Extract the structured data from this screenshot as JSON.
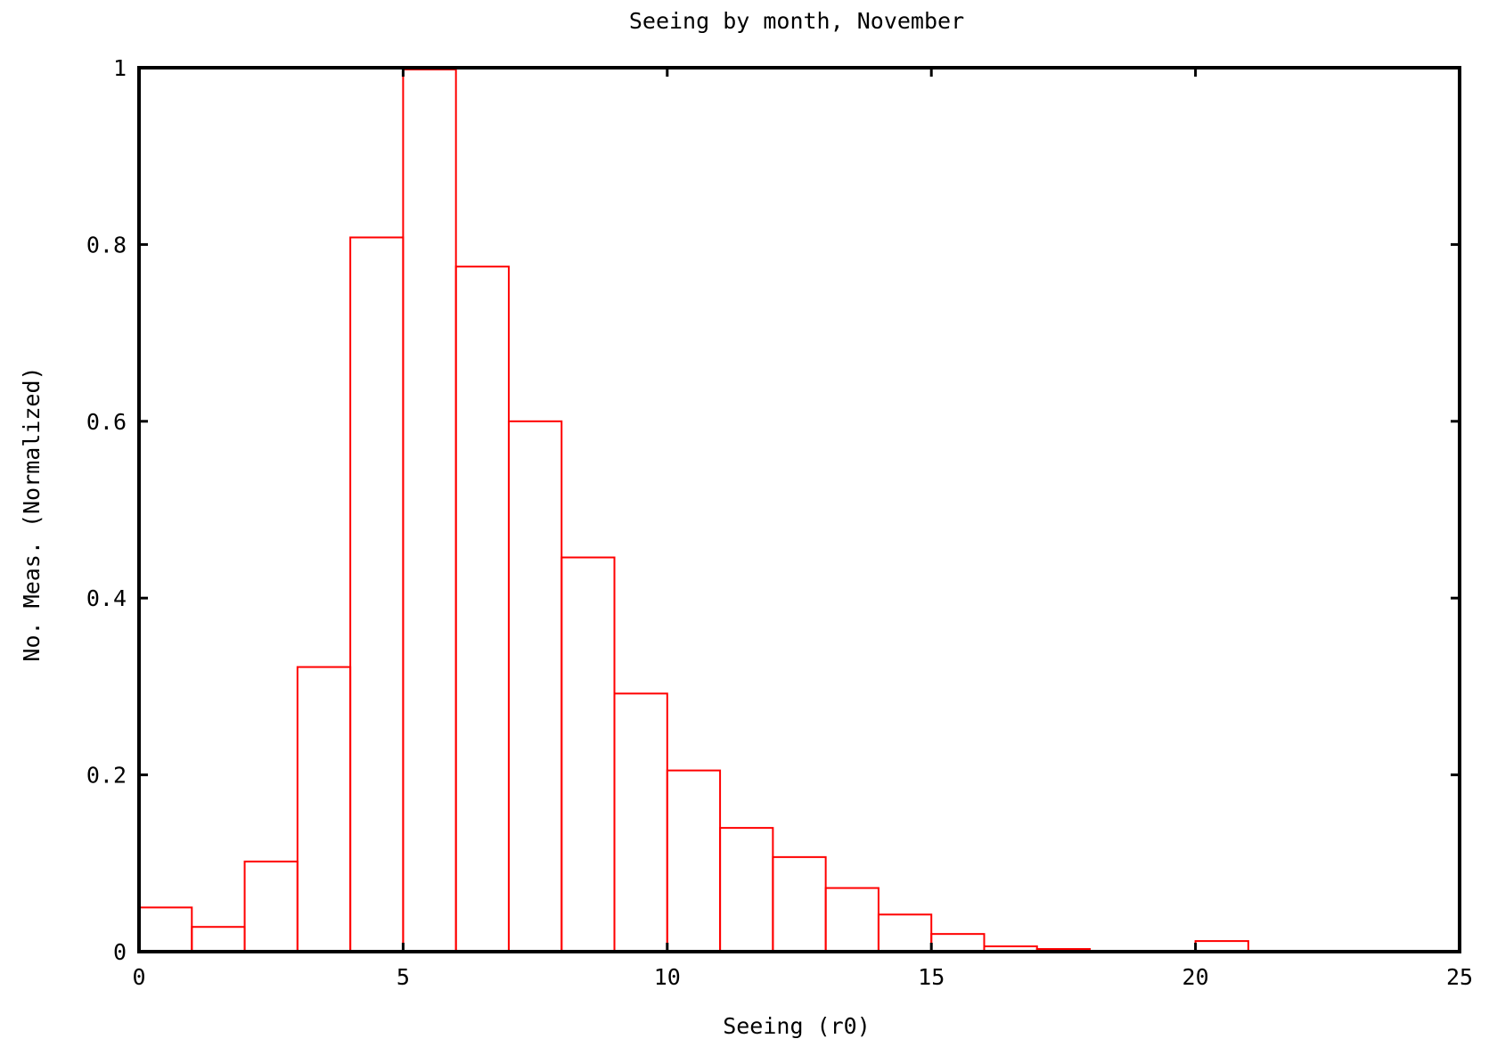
{
  "chart_data": {
    "type": "bar",
    "title": "Seeing by month, November",
    "xlabel": "Seeing (r0)",
    "ylabel": "No. Meas. (Normalized)",
    "xlim": [
      0,
      25
    ],
    "ylim": [
      0,
      1
    ],
    "grid": false,
    "bin_width": 1,
    "x_ticks": [
      "0",
      "5",
      "10",
      "15",
      "20",
      "25"
    ],
    "y_ticks": [
      "0",
      "0.2",
      "0.4",
      "0.6",
      "0.8",
      "1"
    ],
    "bins": [
      {
        "start": 0,
        "value": 0.05
      },
      {
        "start": 1,
        "value": 0.028
      },
      {
        "start": 2,
        "value": 0.102
      },
      {
        "start": 3,
        "value": 0.322
      },
      {
        "start": 4,
        "value": 0.808
      },
      {
        "start": 5,
        "value": 0.998
      },
      {
        "start": 6,
        "value": 0.775
      },
      {
        "start": 7,
        "value": 0.6
      },
      {
        "start": 8,
        "value": 0.446
      },
      {
        "start": 9,
        "value": 0.292
      },
      {
        "start": 10,
        "value": 0.205
      },
      {
        "start": 11,
        "value": 0.14
      },
      {
        "start": 12,
        "value": 0.107
      },
      {
        "start": 13,
        "value": 0.072
      },
      {
        "start": 14,
        "value": 0.042
      },
      {
        "start": 15,
        "value": 0.02
      },
      {
        "start": 16,
        "value": 0.006
      },
      {
        "start": 17,
        "value": 0.003
      },
      {
        "start": 18,
        "value": 0
      },
      {
        "start": 19,
        "value": 0
      },
      {
        "start": 20,
        "value": 0.012
      }
    ],
    "bar_color": "#ff0000",
    "frame_color": "#000000"
  }
}
